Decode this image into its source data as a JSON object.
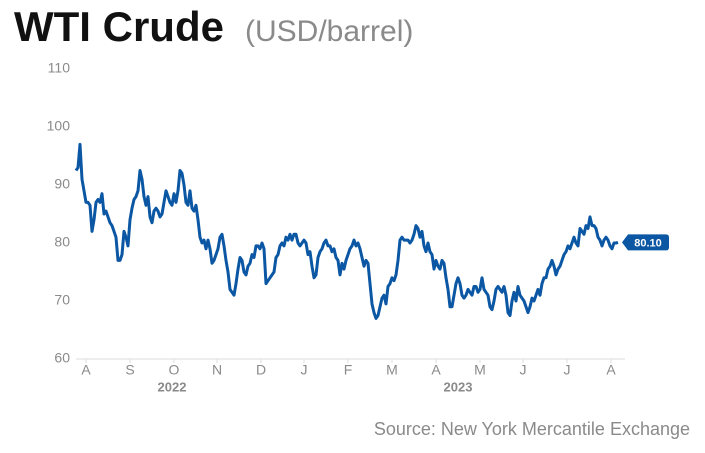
{
  "chart_data": {
    "type": "line",
    "title": "WTI Crude",
    "subtitle": "(USD/barrel)",
    "source": "Source: New York Mercantile Exchange",
    "xlim": [
      0,
      274.5
    ],
    "xticks": [
      {
        "value": 5,
        "label": "A"
      },
      {
        "value": 27,
        "label": "S"
      },
      {
        "value": 49,
        "label": "O"
      },
      {
        "value": 70.5,
        "label": "N"
      },
      {
        "value": 92.5,
        "label": "D"
      },
      {
        "value": 114,
        "label": "J"
      },
      {
        "value": 136,
        "label": "F"
      },
      {
        "value": 158,
        "label": "M"
      },
      {
        "value": 180,
        "label": "A"
      },
      {
        "value": 202,
        "label": "M"
      },
      {
        "value": 223.5,
        "label": "J"
      },
      {
        "value": 245.5,
        "label": "J"
      },
      {
        "value": 267.5,
        "label": "A"
      }
    ],
    "year_labels": [
      {
        "value": 48,
        "label": "2022"
      },
      {
        "value": 191,
        "label": "2023"
      }
    ],
    "ylim": [
      60,
      110
    ],
    "yticks": [
      60,
      70,
      80,
      90,
      100,
      110
    ],
    "grid": false,
    "series": [
      {
        "name": "WTI Crude",
        "color": "#0b57a4",
        "last_value_label": "80.10",
        "values": [
          92.5,
          93,
          97,
          91,
          89,
          87,
          87,
          86.5,
          82,
          84,
          87,
          87.5,
          87,
          88.5,
          85,
          85.5,
          84.5,
          83.5,
          83,
          82,
          81,
          77,
          77,
          78,
          82,
          81,
          79.5,
          84,
          86,
          87.5,
          88,
          89,
          92.5,
          91,
          88,
          86.5,
          88,
          84.5,
          83.5,
          85.5,
          86,
          85.5,
          84.5,
          85,
          87,
          89,
          88,
          87,
          86.5,
          88.5,
          87,
          89,
          92.5,
          92,
          90,
          87,
          86.5,
          89,
          86,
          85.5,
          86.5,
          84,
          81,
          80,
          80.5,
          79,
          80.5,
          79,
          76.5,
          77,
          78,
          79,
          81,
          81.5,
          79.5,
          77,
          75,
          72,
          71.5,
          71,
          73,
          75.5,
          77.5,
          77,
          75,
          74.5,
          76,
          76.5,
          78,
          77.5,
          79.5,
          79.5,
          79,
          80,
          79,
          73,
          73.5,
          74,
          74.5,
          75,
          77.5,
          78,
          79.5,
          80,
          79.5,
          81,
          80.5,
          81.5,
          80.5,
          81.5,
          81.5,
          80,
          79.5,
          80,
          80.5,
          80,
          78,
          78.5,
          76,
          74,
          74.5,
          77.5,
          78.5,
          79,
          80,
          80.5,
          79.5,
          79.5,
          78.5,
          79,
          77.5,
          77,
          74.5,
          76.5,
          75.5,
          77,
          78,
          79,
          79.5,
          80.5,
          79.5,
          80,
          79,
          77.5,
          76,
          77,
          76.5,
          73,
          69.5,
          68,
          67,
          67.5,
          69,
          70.5,
          71,
          69.5,
          72.5,
          73,
          74,
          73.5,
          74.5,
          77,
          80.5,
          81,
          80.5,
          80.5,
          80.5,
          80,
          80.5,
          81.5,
          83,
          82.5,
          81,
          82,
          79.5,
          78.5,
          80,
          78.5,
          78,
          75.5,
          77,
          76,
          75.5,
          77,
          76.5,
          74,
          72,
          69,
          69,
          71,
          73,
          74,
          73,
          71,
          70.5,
          71,
          72,
          71.5,
          71,
          72.5,
          72.5,
          71.5,
          72,
          74,
          72,
          71.5,
          71,
          69,
          68.5,
          70,
          72,
          72.5,
          72,
          71.5,
          72.5,
          71,
          68,
          67.5,
          70,
          71.5,
          70,
          72.5,
          71,
          70.5,
          70,
          69,
          68,
          69,
          70.5,
          70,
          71,
          72,
          71,
          73,
          74,
          74,
          75.5,
          76,
          77,
          76,
          74.5,
          75.5,
          76,
          77,
          78,
          78.5,
          79.5,
          79,
          80,
          81,
          80,
          79.5,
          82.5,
          82,
          81.5,
          83,
          82.5,
          84.5,
          83,
          83,
          82.5,
          81,
          80.5,
          79.5,
          80.5,
          81,
          80.5,
          79.5,
          79,
          80,
          80,
          80.1
        ]
      }
    ]
  }
}
